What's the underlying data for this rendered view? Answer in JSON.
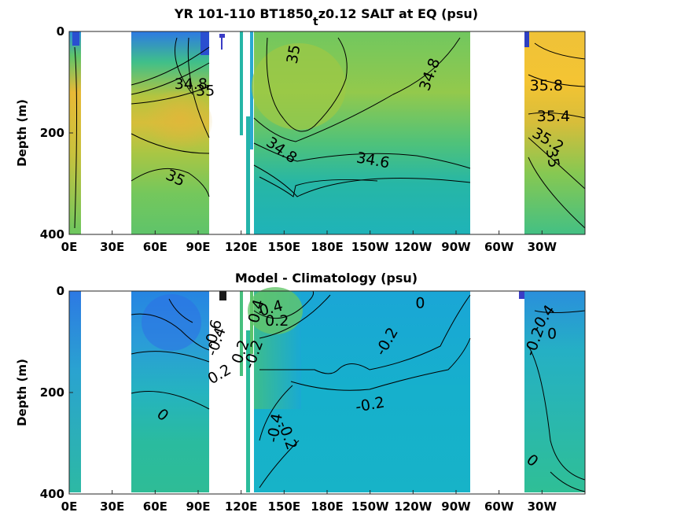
{
  "chart_data": [
    {
      "type": "heatmap",
      "title": "YR 101-110 BT1850",
      "title_subscript": "t",
      "title_rest": "z0.12 SALT at EQ (psu)",
      "xlabel": "",
      "ylabel": "Depth (m)",
      "x_tick_labels": [
        "0E",
        "30E",
        "60E",
        "90E",
        "120E",
        "150E",
        "180E",
        "150W",
        "120W",
        "90W",
        "60W",
        "30W"
      ],
      "y_tick_labels": [
        "0",
        "200",
        "400"
      ],
      "y_ticks": [
        0,
        200,
        400
      ],
      "ylim": [
        400,
        0
      ],
      "colormap": "parula",
      "contour_labels": [
        {
          "text": "35",
          "lon": 157,
          "depth": 45,
          "rot": -80
        },
        {
          "text": "34.8",
          "lon": 252,
          "depth": 85,
          "rot": -70
        },
        {
          "text": "34.8",
          "lon": 85,
          "depth": 105,
          "rot": 0
        },
        {
          "text": "35",
          "lon": 95,
          "depth": 118,
          "rot": 0
        },
        {
          "text": "34.8",
          "lon": 148,
          "depth": 235,
          "rot": 35
        },
        {
          "text": "34.6",
          "lon": 212,
          "depth": 255,
          "rot": 10
        },
        {
          "text": "35",
          "lon": 74,
          "depth": 290,
          "rot": 25
        },
        {
          "text": "35.8",
          "lon": 333,
          "depth": 108,
          "rot": 0
        },
        {
          "text": "35.4",
          "lon": 338,
          "depth": 168,
          "rot": 0
        },
        {
          "text": "35.2",
          "lon": 334,
          "depth": 215,
          "rot": 30
        },
        {
          "text": "35",
          "lon": 337,
          "depth": 250,
          "rot": 80
        }
      ]
    },
    {
      "type": "heatmap",
      "title": "Model - Climatology (psu)",
      "xlabel": "",
      "ylabel": "Depth (m)",
      "x_tick_labels": [
        "0E",
        "30E",
        "60E",
        "90E",
        "120E",
        "150E",
        "180E",
        "150W",
        "120W",
        "90W",
        "60W",
        "30W"
      ],
      "y_tick_labels": [
        "0",
        "200",
        "400"
      ],
      "y_ticks": [
        0,
        200,
        400
      ],
      "ylim": [
        400,
        0
      ],
      "colormap": "parula",
      "contour_labels": [
        {
          "text": "0",
          "lon": 245,
          "depth": 25,
          "rot": 0
        },
        {
          "text": "0.4",
          "lon": 141,
          "depth": 35,
          "rot": -15
        },
        {
          "text": "0.4",
          "lon": 131,
          "depth": 40,
          "rot": -75
        },
        {
          "text": "0.2",
          "lon": 145,
          "depth": 60,
          "rot": 0
        },
        {
          "text": "-0.6",
          "lon": 101,
          "depth": 85,
          "rot": -75
        },
        {
          "text": "-0.4",
          "lon": 103,
          "depth": 100,
          "rot": -70
        },
        {
          "text": "0.2",
          "lon": 120,
          "depth": 120,
          "rot": -70
        },
        {
          "text": "-0.2",
          "lon": 129,
          "depth": 125,
          "rot": -70
        },
        {
          "text": "0.2",
          "lon": 105,
          "depth": 165,
          "rot": -30
        },
        {
          "text": "-0.2",
          "lon": 222,
          "depth": 100,
          "rot": -60
        },
        {
          "text": "-0.2",
          "lon": 210,
          "depth": 225,
          "rot": -10
        },
        {
          "text": "0",
          "lon": 65,
          "depth": 245,
          "rot": 40
        },
        {
          "text": "-0.4",
          "lon": 144,
          "depth": 270,
          "rot": -80
        },
        {
          "text": "-0.2",
          "lon": 152,
          "depth": 285,
          "rot": 70
        },
        {
          "text": "-0.4",
          "lon": 331,
          "depth": 55,
          "rot": -55
        },
        {
          "text": "-0.2",
          "lon": 325,
          "depth": 100,
          "rot": -70
        },
        {
          "text": "0",
          "lon": 337,
          "depth": 85,
          "rot": 0
        },
        {
          "text": "0",
          "lon": 323,
          "depth": 335,
          "rot": 40
        }
      ]
    }
  ],
  "colors": {
    "yellow": "#f4c433",
    "orange_yellow": "#e8b936",
    "light_green": "#8ec94a",
    "green": "#5fc46a",
    "teal_green": "#3fbf8a",
    "teal": "#24b4aa",
    "cyan": "#15b2cc",
    "light_blue": "#1e97dd",
    "blue": "#2d72e6",
    "dark_blue": "#3a3cc6",
    "contour": "#000000",
    "background": "#ffffff"
  }
}
